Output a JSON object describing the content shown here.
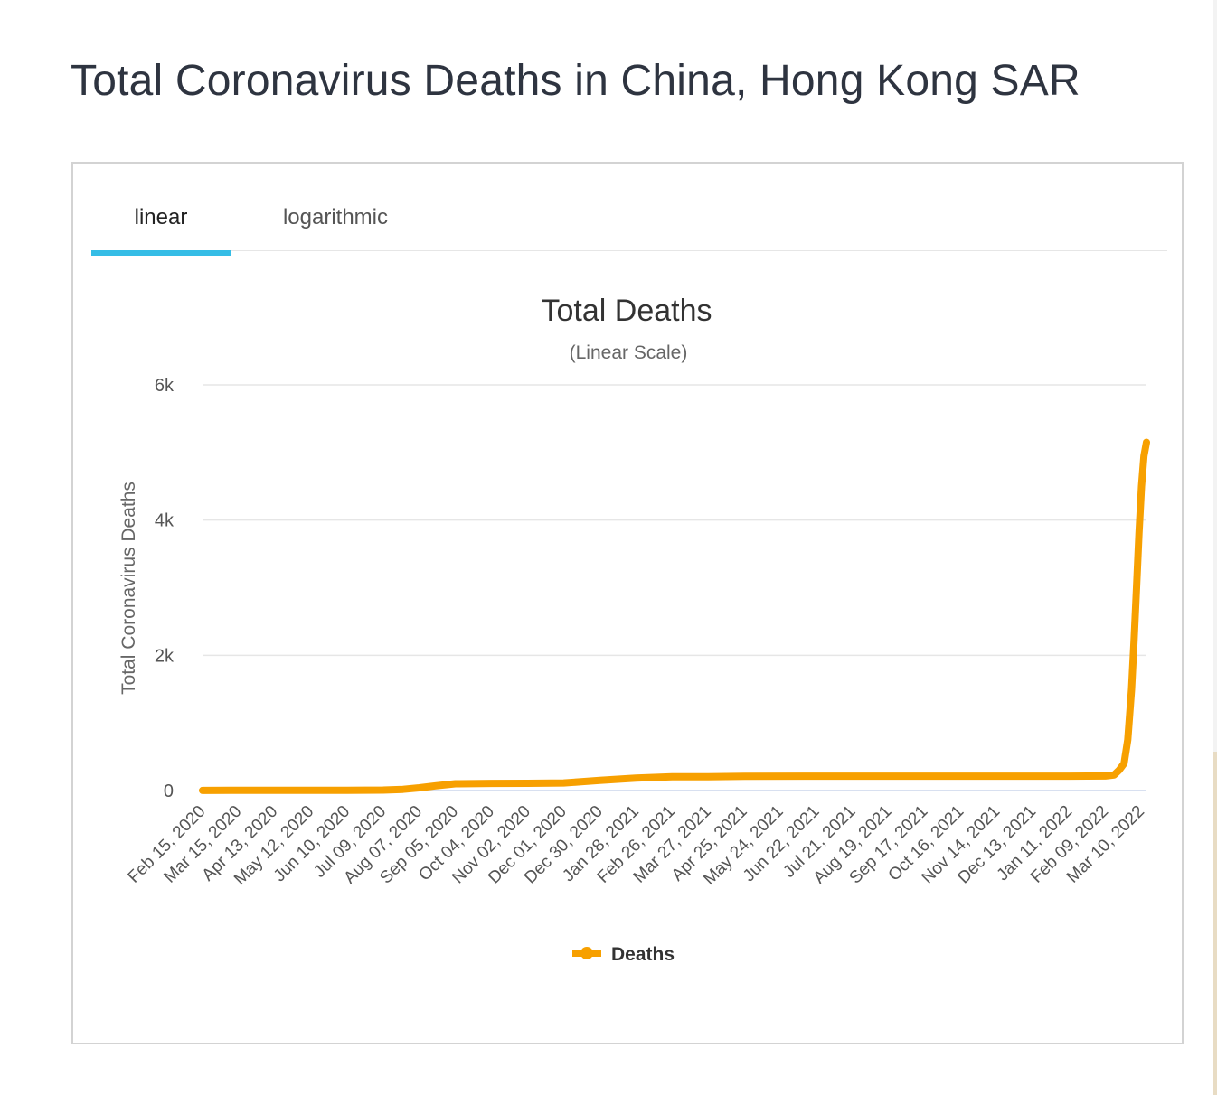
{
  "page": {
    "title": "Total Coronavirus Deaths in China, Hong Kong SAR"
  },
  "tabs": [
    {
      "label": "linear",
      "active": true
    },
    {
      "label": "logarithmic",
      "active": false
    }
  ],
  "colors": {
    "series": "#f7a000",
    "tab_active_underline": "#35bde6"
  },
  "chart_data": {
    "type": "line",
    "title": "Total Deaths",
    "subtitle": "(Linear Scale)",
    "ylabel": "Total Coronavirus Deaths",
    "xlabel": "",
    "ylim": [
      0,
      6000
    ],
    "yticks": [
      {
        "value": 0,
        "label": "0"
      },
      {
        "value": 2000,
        "label": "2k"
      },
      {
        "value": 4000,
        "label": "4k"
      },
      {
        "value": 6000,
        "label": "6k"
      }
    ],
    "xticks": [
      "Feb 15, 2020",
      "Mar 15, 2020",
      "Apr 13, 2020",
      "May 12, 2020",
      "Jun 10, 2020",
      "Jul 09, 2020",
      "Aug 07, 2020",
      "Sep 05, 2020",
      "Oct 04, 2020",
      "Nov 02, 2020",
      "Dec 01, 2020",
      "Dec 30, 2020",
      "Jan 28, 2021",
      "Feb 26, 2021",
      "Mar 27, 2021",
      "Apr 25, 2021",
      "May 24, 2021",
      "Jun 22, 2021",
      "Jul 21, 2021",
      "Aug 19, 2021",
      "Sep 17, 2021",
      "Oct 16, 2021",
      "Nov 14, 2021",
      "Dec 13, 2021",
      "Jan 11, 2022",
      "Feb 09, 2022",
      "Mar 10, 2022"
    ],
    "x_start": "Feb 15, 2020",
    "x_end": "Mar 14, 2022",
    "grid": true,
    "legend": "bottom-center",
    "series": [
      {
        "name": "Deaths",
        "points": [
          {
            "x": "Feb 15, 2020",
            "y": 2
          },
          {
            "x": "Mar 15, 2020",
            "y": 4
          },
          {
            "x": "Apr 13, 2020",
            "y": 4
          },
          {
            "x": "May 12, 2020",
            "y": 4
          },
          {
            "x": "Jun 10, 2020",
            "y": 4
          },
          {
            "x": "Jul 09, 2020",
            "y": 7
          },
          {
            "x": "Jul 25, 2020",
            "y": 18
          },
          {
            "x": "Aug 07, 2020",
            "y": 40
          },
          {
            "x": "Aug 20, 2020",
            "y": 70
          },
          {
            "x": "Sep 05, 2020",
            "y": 100
          },
          {
            "x": "Oct 04, 2020",
            "y": 105
          },
          {
            "x": "Nov 02, 2020",
            "y": 107
          },
          {
            "x": "Dec 01, 2020",
            "y": 112
          },
          {
            "x": "Dec 15, 2020",
            "y": 130
          },
          {
            "x": "Dec 30, 2020",
            "y": 150
          },
          {
            "x": "Jan 28, 2021",
            "y": 185
          },
          {
            "x": "Feb 26, 2021",
            "y": 203
          },
          {
            "x": "Mar 27, 2021",
            "y": 205
          },
          {
            "x": "Apr 25, 2021",
            "y": 210
          },
          {
            "x": "Jun 22, 2021",
            "y": 212
          },
          {
            "x": "Oct 16, 2021",
            "y": 213
          },
          {
            "x": "Jan 11, 2022",
            "y": 213
          },
          {
            "x": "Feb 09, 2022",
            "y": 215
          },
          {
            "x": "Feb 16, 2022",
            "y": 230
          },
          {
            "x": "Feb 20, 2022",
            "y": 300
          },
          {
            "x": "Feb 24, 2022",
            "y": 400
          },
          {
            "x": "Feb 27, 2022",
            "y": 750
          },
          {
            "x": "Mar 02, 2022",
            "y": 1500
          },
          {
            "x": "Mar 04, 2022",
            "y": 2200
          },
          {
            "x": "Mar 06, 2022",
            "y": 3000
          },
          {
            "x": "Mar 08, 2022",
            "y": 3800
          },
          {
            "x": "Mar 10, 2022",
            "y": 4500
          },
          {
            "x": "Mar 12, 2022",
            "y": 4950
          },
          {
            "x": "Mar 14, 2022",
            "y": 5150
          }
        ]
      }
    ]
  }
}
